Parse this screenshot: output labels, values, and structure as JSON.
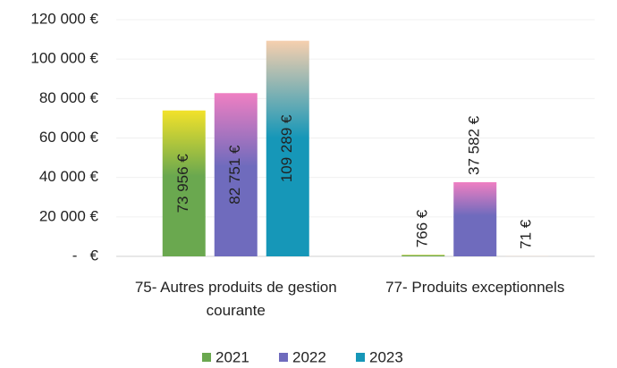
{
  "chart_data": {
    "type": "bar",
    "categories": [
      "75- Autres produits de gestion courante",
      "77- Produits exceptionnels"
    ],
    "series": [
      {
        "name": "2021",
        "color": "#6aa84f",
        "gradient_color": "#f2e22a",
        "values": [
          73956,
          766
        ],
        "value_labels": [
          "73 956 €",
          "766 €"
        ]
      },
      {
        "name": "2022",
        "color": "#6f6bbd",
        "gradient_color": "#ef7fc2",
        "values": [
          82751,
          37582
        ],
        "value_labels": [
          "82 751 €",
          "37 582 €"
        ]
      },
      {
        "name": "2023",
        "color": "#1697b8",
        "gradient_color": "#f6cfae",
        "values": [
          109289,
          71
        ],
        "value_labels": [
          "109 289 €",
          "71 €"
        ]
      }
    ],
    "ylim": [
      0,
      120000
    ],
    "yticks": [
      {
        "value": 0,
        "label": "-   €"
      },
      {
        "value": 20000,
        "label": "20 000 €"
      },
      {
        "value": 40000,
        "label": "40 000 €"
      },
      {
        "value": 60000,
        "label": "60 000 €"
      },
      {
        "value": 80000,
        "label": "80 000 €"
      },
      {
        "value": 100000,
        "label": "100 000 €"
      },
      {
        "value": 120000,
        "label": "120 000 €"
      }
    ],
    "grid": true,
    "legend": "bottom"
  }
}
